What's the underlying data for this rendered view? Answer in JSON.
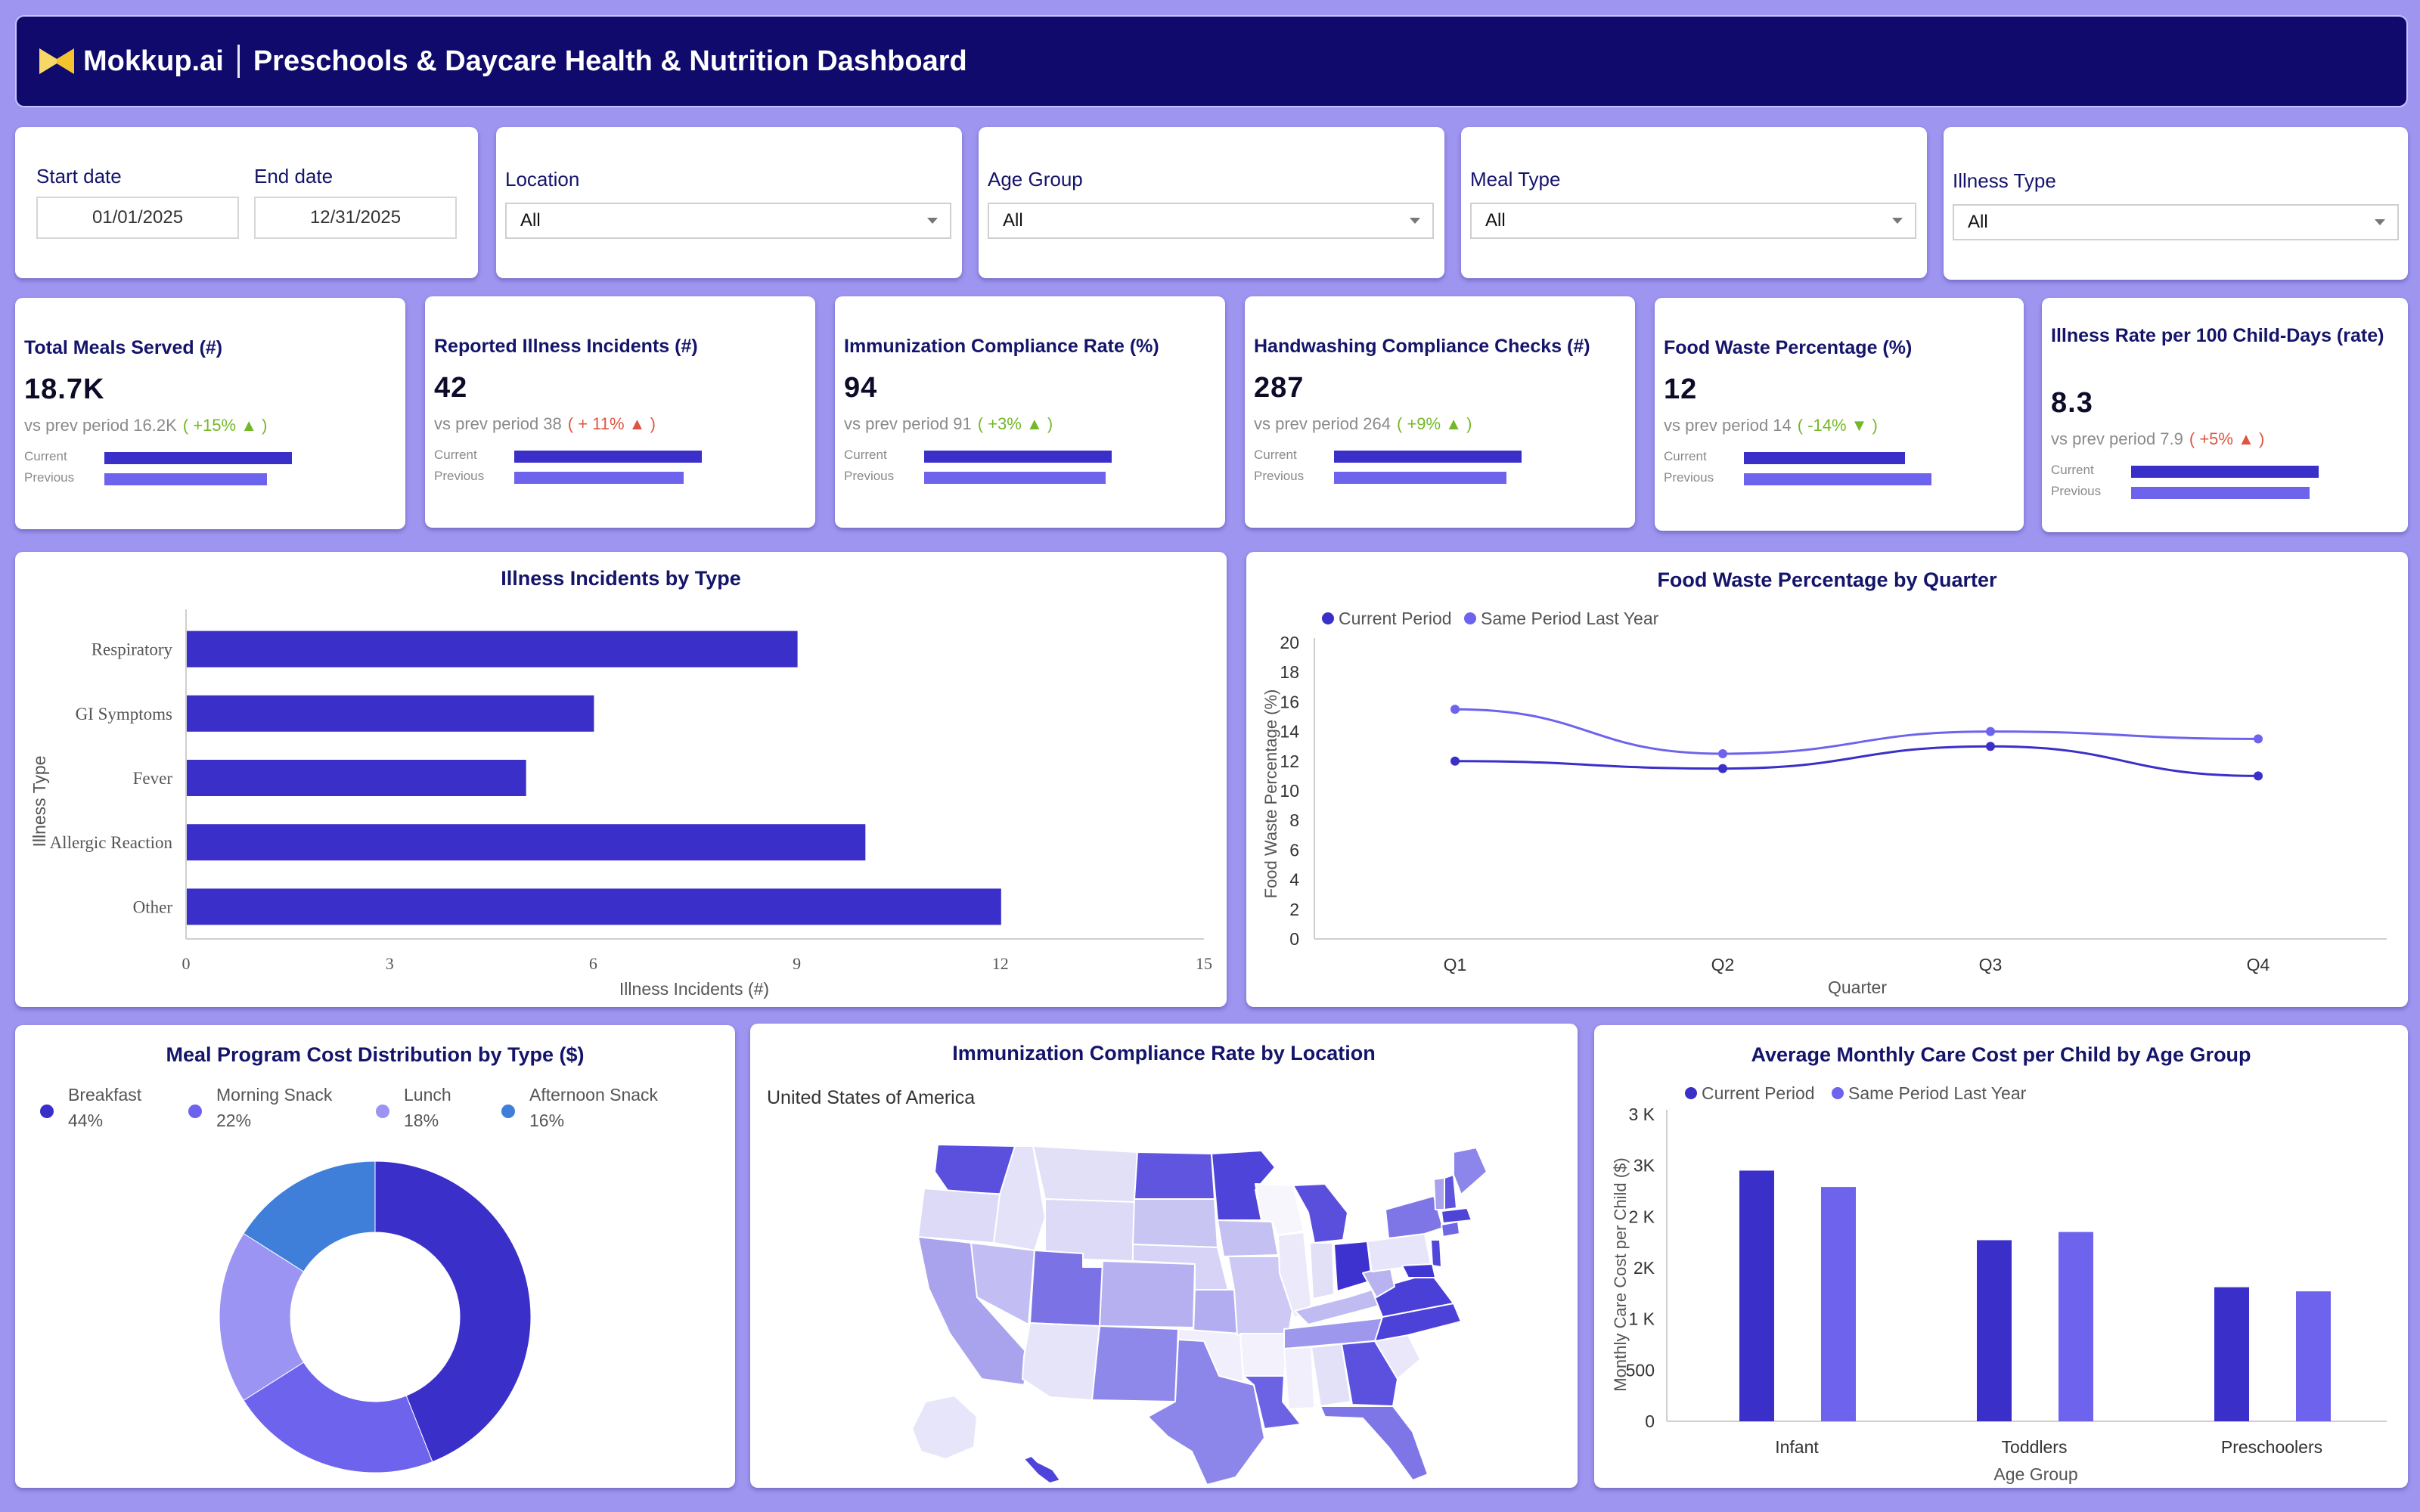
{
  "header": {
    "brand": "Mokkup.ai",
    "title": "Preschools & Daycare Health & Nutrition Dashboard"
  },
  "filters": {
    "start_label": "Start date",
    "start_value": "01/01/2025",
    "end_label": "End date",
    "end_value": "12/31/2025",
    "location_label": "Location",
    "location_value": "All",
    "age_label": "Age Group",
    "age_value": "All",
    "meal_label": "Meal Type",
    "meal_value": "All",
    "illness_label": "Illness Type",
    "illness_value": "All"
  },
  "kpis": [
    {
      "title": "Total Meals Served (#)",
      "value": "18.7K",
      "prev_text": "vs prev period 16.2K",
      "change": "( +15% ▲ )",
      "dir": "up",
      "current": 18.7,
      "previous": 16.2
    },
    {
      "title": "Reported Illness Incidents (#)",
      "value": "42",
      "prev_text": "vs prev period 38",
      "change": "( + 11% ▲ )",
      "dir": "bad",
      "current": 42,
      "previous": 38
    },
    {
      "title": "Immunization Compliance Rate (%)",
      "value": "94",
      "prev_text": "vs prev period 91",
      "change": "( +3% ▲ )",
      "dir": "up",
      "current": 94,
      "previous": 91
    },
    {
      "title": "Handwashing Compliance Checks (#)",
      "value": "287",
      "prev_text": "vs prev period 264",
      "change": "( +9% ▲ )",
      "dir": "up",
      "current": 287,
      "previous": 264
    },
    {
      "title": "Food Waste Percentage (%)",
      "value": "12",
      "prev_text": "vs prev period 14",
      "change": "( -14% ▼ )",
      "dir": "good-down",
      "current": 12,
      "previous": 14
    },
    {
      "title": "Illness Rate per 100 Child-Days (rate)",
      "value": "8.3",
      "prev_text": "vs prev period 7.9",
      "change": "( +5% ▲ )",
      "dir": "bad",
      "current": 8.3,
      "previous": 7.9
    }
  ],
  "kpi_labels": {
    "current": "Current",
    "previous": "Previous"
  },
  "colors": {
    "primary": "#3a2fc9",
    "secondary": "#6e63ec",
    "light": "#9b94f3",
    "blue": "#3f7fd9",
    "header_bg": "#0f0a6b",
    "page_bg": "#9d95ef",
    "up": "#74b829",
    "down": "#e0553f"
  },
  "charts": {
    "illness": {
      "title": "Illness Incidents by Type",
      "chart_data": {
        "type": "bar",
        "orientation": "horizontal",
        "categories": [
          "Respiratory",
          "GI Symptoms",
          "Fever",
          "Allergic Reaction",
          "Other"
        ],
        "values": [
          9,
          6,
          5,
          10,
          12
        ],
        "xlabel": "Illness Incidents (#)",
        "ylabel": "Illness Type",
        "xlim": [
          0,
          15
        ],
        "xticks": [
          "0",
          "3",
          "6",
          "9",
          "12",
          "15"
        ]
      }
    },
    "foodwaste": {
      "title": "Food Waste Percentage by Quarter",
      "chart_data": {
        "type": "line",
        "categories": [
          "Q1",
          "Q2",
          "Q3",
          "Q4"
        ],
        "series": [
          {
            "name": "Current Period",
            "values": [
              12,
              11.5,
              13,
              11
            ]
          },
          {
            "name": "Same Period Last Year",
            "values": [
              15.5,
              12.5,
              14,
              13.5
            ]
          }
        ],
        "xlabel": "Quarter",
        "ylabel": "Food Waste Percentage (%)",
        "ylim": [
          0,
          20
        ],
        "yticks": [
          "0",
          "2",
          "4",
          "6",
          "8",
          "10",
          "12",
          "14",
          "16",
          "18",
          "20"
        ],
        "legend": "top-left"
      }
    },
    "mealcost": {
      "title": "Meal Program Cost Distribution by Type ($)",
      "chart_data": {
        "type": "pie",
        "donut": true,
        "labels": [
          "Breakfast",
          "Morning Snack",
          "Lunch",
          "Afternoon Snack"
        ],
        "pct_labels": [
          "44%",
          "22%",
          "18%",
          "16%"
        ],
        "values": [
          44,
          22,
          18,
          16
        ],
        "legend": "top"
      }
    },
    "map": {
      "title": "Immunization Compliance Rate by Location",
      "region_label": "United States of America"
    },
    "carecost": {
      "title": "Average Monthly Care Cost per Child by Age Group",
      "chart_data": {
        "type": "bar",
        "categories": [
          "Infant",
          "Toddlers",
          "Preschoolers"
        ],
        "series": [
          {
            "name": "Current Period",
            "values": [
              2450,
              1770,
              1310
            ]
          },
          {
            "name": "Same Period Last Year",
            "values": [
              2290,
              1850,
              1270
            ]
          }
        ],
        "xlabel": "Age Group",
        "ylabel": "Monthly Care Cost per Child ($)",
        "ylim": [
          0,
          3000
        ],
        "yticks": [
          "0",
          "500",
          "1 K",
          "2K",
          "2 K",
          "3K",
          "3 K"
        ],
        "legend": "top-left"
      }
    }
  }
}
